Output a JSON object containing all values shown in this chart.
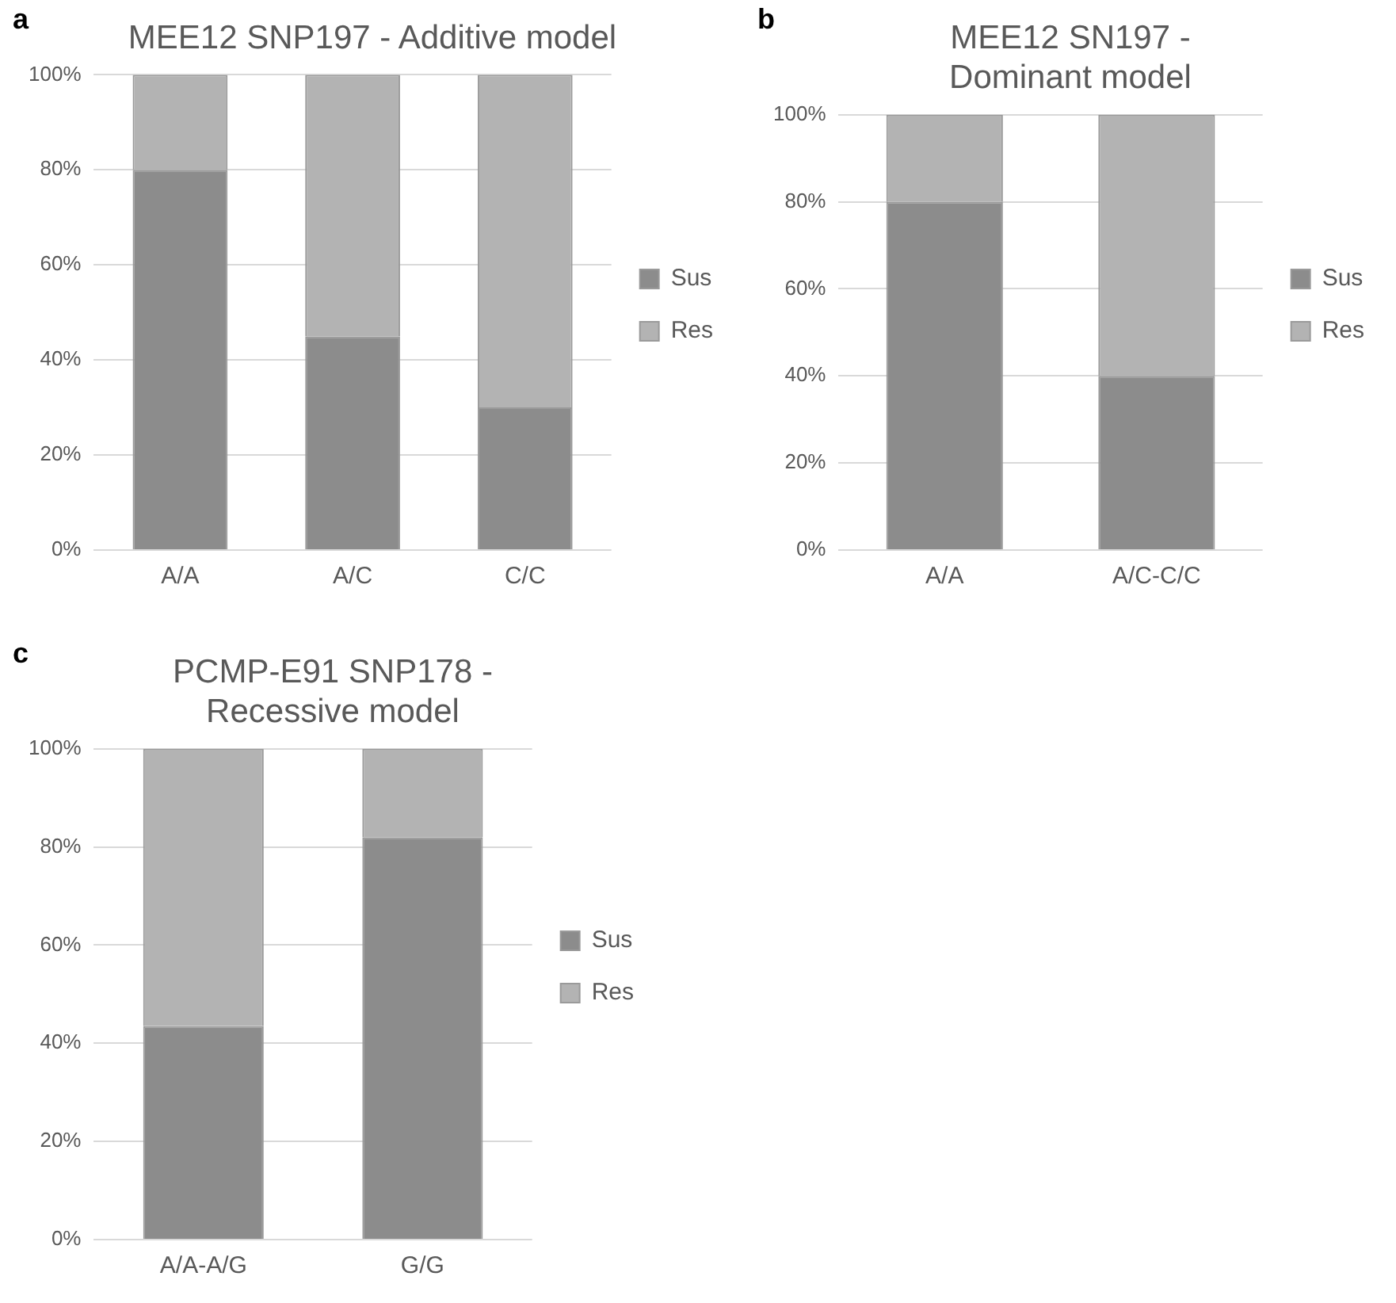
{
  "chart_data": [
    {
      "type": "bar",
      "title": "MEE12 SNP197 - Additive model",
      "annotations": [
        "a"
      ],
      "categories": [
        "A/A",
        "A/C",
        "C/C"
      ],
      "stacked": true,
      "legend": "right",
      "grid": "y",
      "ylim": [
        0,
        100
      ],
      "yticks": [
        {
          "value": 0,
          "label": "0%"
        },
        {
          "value": 20,
          "label": "20%"
        },
        {
          "value": 40,
          "label": "40%"
        },
        {
          "value": 60,
          "label": "60%"
        },
        {
          "value": 80,
          "label": "80%"
        },
        {
          "value": 100,
          "label": "100%"
        }
      ],
      "series": [
        {
          "name": "Sus",
          "color": "#8c8c8c",
          "values": [
            80,
            45,
            30
          ]
        },
        {
          "name": "Res",
          "color": "#b3b3b3",
          "values": [
            20,
            55,
            70
          ]
        }
      ]
    },
    {
      "type": "bar",
      "title": "MEE12 SN197 - Dominant model",
      "annotations": [
        "b"
      ],
      "categories": [
        "A/A",
        "A/C-C/C"
      ],
      "stacked": true,
      "legend": "right",
      "grid": "y",
      "ylim": [
        0,
        100
      ],
      "yticks": [
        {
          "value": 0,
          "label": "0%"
        },
        {
          "value": 20,
          "label": "20%"
        },
        {
          "value": 40,
          "label": "40%"
        },
        {
          "value": 60,
          "label": "60%"
        },
        {
          "value": 80,
          "label": "80%"
        },
        {
          "value": 100,
          "label": "100%"
        }
      ],
      "series": [
        {
          "name": "Sus",
          "color": "#8c8c8c",
          "values": [
            80,
            40
          ]
        },
        {
          "name": "Res",
          "color": "#b3b3b3",
          "values": [
            20,
            60
          ]
        }
      ]
    },
    {
      "type": "bar",
      "title": "PCMP-E91 SNP178 - Recessive model",
      "annotations": [
        "c"
      ],
      "categories": [
        "A/A-A/G",
        "G/G"
      ],
      "stacked": true,
      "legend": "right",
      "grid": "y",
      "ylim": [
        0,
        100
      ],
      "yticks": [
        {
          "value": 0,
          "label": "0%"
        },
        {
          "value": 20,
          "label": "20%"
        },
        {
          "value": 40,
          "label": "40%"
        },
        {
          "value": 60,
          "label": "60%"
        },
        {
          "value": 80,
          "label": "80%"
        },
        {
          "value": 100,
          "label": "100%"
        }
      ],
      "series": [
        {
          "name": "Sus",
          "color": "#8c8c8c",
          "values": [
            43.5,
            82
          ]
        },
        {
          "name": "Res",
          "color": "#b3b3b3",
          "values": [
            56.5,
            18
          ]
        }
      ]
    }
  ]
}
